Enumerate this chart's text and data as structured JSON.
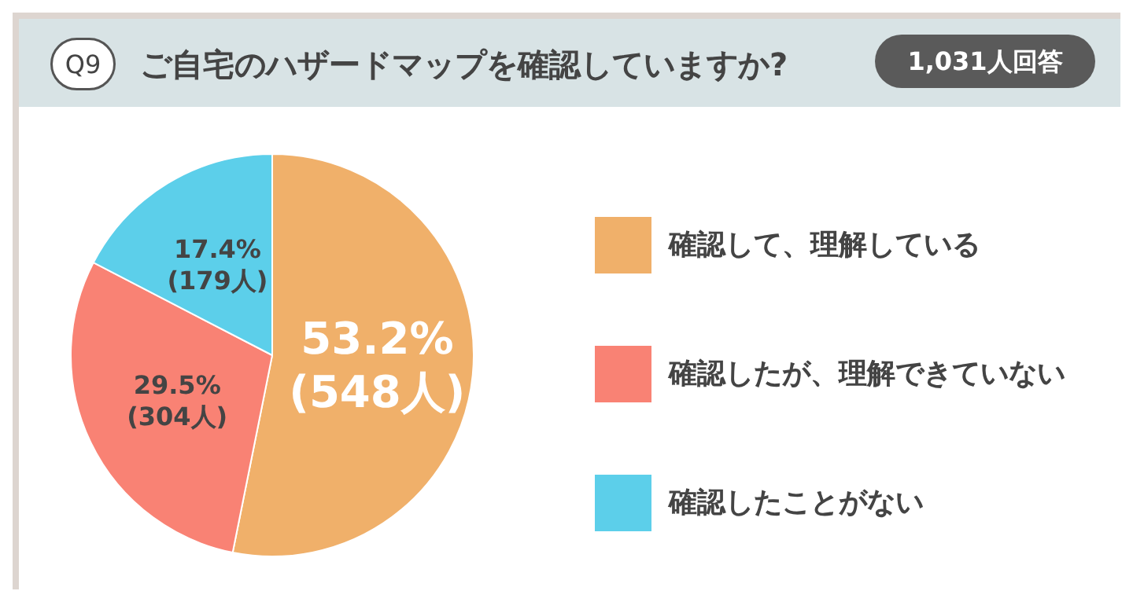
{
  "chart_data": {
    "type": "pie",
    "title": "ご自宅のハザードマップを確認していますか?",
    "annotations": [
      "Q9",
      "1,031人回答"
    ],
    "categories": [
      "確認して、理解している",
      "確認したが、理解できていない",
      "確認したことがない"
    ],
    "values": [
      53.2,
      29.5,
      17.4
    ],
    "colors": [
      "#f0b06a",
      "#f98274",
      "#5ccfea"
    ],
    "value_labels": [
      "53.2%\n(548人)",
      "29.5%\n(304人)",
      "17.4%\n(179人)"
    ],
    "legend": "right"
  }
}
